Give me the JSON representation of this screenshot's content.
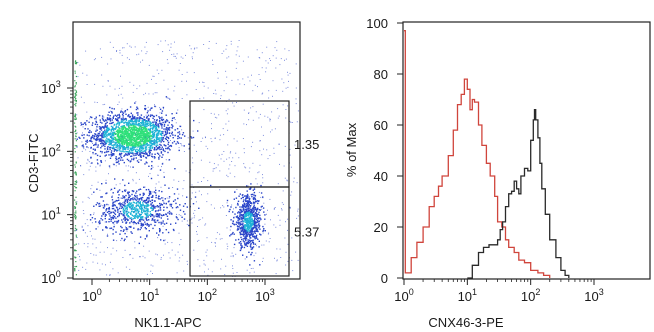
{
  "chart_data": [
    {
      "type": "scatter",
      "xlabel": "NK1.1-APC",
      "ylabel": "CD3-FITC",
      "xscale": "log",
      "yscale": "log",
      "xlim": [
        1,
        1000
      ],
      "ylim": [
        1,
        1000
      ],
      "x_ticks": [
        {
          "base": "10",
          "exp": "0",
          "value": 1
        },
        {
          "base": "10",
          "exp": "1",
          "value": 10
        },
        {
          "base": "10",
          "exp": "2",
          "value": 100
        },
        {
          "base": "10",
          "exp": "3",
          "value": 1000
        }
      ],
      "y_ticks": [
        {
          "base": "10",
          "exp": "0",
          "value": 1
        },
        {
          "base": "10",
          "exp": "1",
          "value": 10
        },
        {
          "base": "10",
          "exp": "2",
          "value": 100
        },
        {
          "base": "10",
          "exp": "3",
          "value": 1000
        }
      ],
      "gates": [
        {
          "label": "1.35",
          "x_range": [
            50,
            1000
          ],
          "y_range": [
            30,
            900
          ]
        },
        {
          "label": "5.37",
          "x_range": [
            50,
            1000
          ],
          "y_range": [
            1,
            30
          ]
        }
      ],
      "populations": [
        {
          "center": [
            5,
            180
          ],
          "spread": [
            0.35,
            0.18
          ],
          "density": "high"
        },
        {
          "center": [
            6,
            12
          ],
          "spread": [
            0.35,
            0.18
          ],
          "density": "medium"
        },
        {
          "center": [
            500,
            8
          ],
          "spread": [
            0.12,
            0.2
          ],
          "density": "medium"
        }
      ],
      "colors": {
        "high": "#2fe07a",
        "mid": "#1fb3d6",
        "low": "#2a45c8"
      },
      "grid": false
    },
    {
      "type": "line",
      "xlabel": "CNX46-3-PE",
      "ylabel": "% of Max",
      "xscale": "log",
      "xlim": [
        1,
        1000
      ],
      "ylim": [
        0,
        100
      ],
      "y_ticks": [
        0,
        20,
        40,
        60,
        80,
        100
      ],
      "x_ticks": [
        {
          "base": "10",
          "exp": "0",
          "value": 1
        },
        {
          "base": "10",
          "exp": "1",
          "value": 10
        },
        {
          "base": "10",
          "exp": "2",
          "value": 100
        },
        {
          "base": "10",
          "exp": "3",
          "value": 1000
        }
      ],
      "series": [
        {
          "color": "#d0453c",
          "points": [
            [
              1,
              97
            ],
            [
              1.05,
              2
            ],
            [
              1.3,
              8
            ],
            [
              1.6,
              14
            ],
            [
              2,
              20
            ],
            [
              2.5,
              28
            ],
            [
              3,
              32
            ],
            [
              3.5,
              36
            ],
            [
              4,
              40
            ],
            [
              5,
              48
            ],
            [
              6,
              58
            ],
            [
              7,
              68
            ],
            [
              8,
              72
            ],
            [
              9,
              78
            ],
            [
              10,
              74
            ],
            [
              11,
              66
            ],
            [
              12,
              70
            ],
            [
              13,
              69
            ],
            [
              15,
              60
            ],
            [
              17,
              52
            ],
            [
              20,
              45
            ],
            [
              23,
              40
            ],
            [
              27,
              32
            ],
            [
              30,
              22
            ],
            [
              35,
              20
            ],
            [
              40,
              15
            ],
            [
              45,
              12
            ],
            [
              55,
              10
            ],
            [
              65,
              7
            ],
            [
              80,
              6
            ],
            [
              100,
              3
            ],
            [
              130,
              2
            ],
            [
              160,
              1
            ],
            [
              200,
              0
            ]
          ]
        },
        {
          "color": "#2a2a2a",
          "points": [
            [
              10,
              0
            ],
            [
              12,
              5
            ],
            [
              15,
              10
            ],
            [
              18,
              12
            ],
            [
              22,
              13
            ],
            [
              26,
              13
            ],
            [
              30,
              15
            ],
            [
              33,
              19
            ],
            [
              36,
              22
            ],
            [
              40,
              28
            ],
            [
              45,
              33
            ],
            [
              50,
              34
            ],
            [
              55,
              38
            ],
            [
              60,
              35
            ],
            [
              65,
              33
            ],
            [
              70,
              40
            ],
            [
              80,
              43
            ],
            [
              90,
              42
            ],
            [
              100,
              54
            ],
            [
              110,
              62
            ],
            [
              115,
              66
            ],
            [
              120,
              62
            ],
            [
              130,
              55
            ],
            [
              140,
              45
            ],
            [
              150,
              35
            ],
            [
              170,
              25
            ],
            [
              200,
              15
            ],
            [
              250,
              8
            ],
            [
              300,
              3
            ],
            [
              350,
              1
            ],
            [
              400,
              0
            ]
          ]
        }
      ],
      "grid": false
    }
  ]
}
